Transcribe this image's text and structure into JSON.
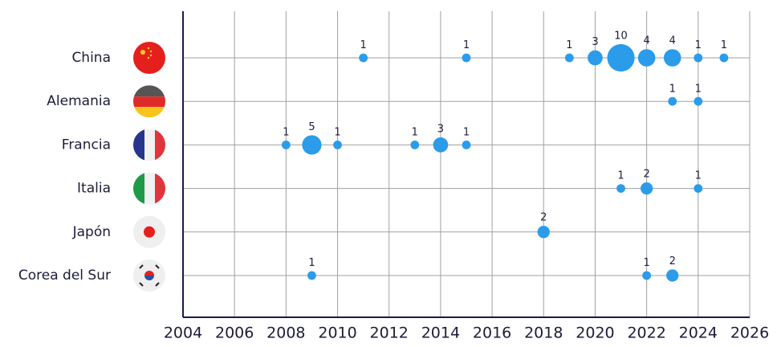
{
  "chart_data": {
    "type": "bubble",
    "categories": [
      "China",
      "Alemania",
      "Francia",
      "Italia",
      "Japón",
      "Corea del Sur"
    ],
    "series": [
      {
        "name": "China",
        "x": [
          2011,
          2015,
          2019,
          2020,
          2021,
          2022,
          2023,
          2024,
          2025
        ],
        "values": [
          1,
          1,
          1,
          3,
          10,
          4,
          4,
          1,
          1
        ]
      },
      {
        "name": "Alemania",
        "x": [
          2023,
          2024
        ],
        "values": [
          1,
          1
        ]
      },
      {
        "name": "Francia",
        "x": [
          2008,
          2009,
          2010,
          2013,
          2014,
          2015
        ],
        "values": [
          1,
          5,
          1,
          1,
          3,
          1
        ]
      },
      {
        "name": "Italia",
        "x": [
          2021,
          2022,
          2024
        ],
        "values": [
          1,
          2,
          1
        ]
      },
      {
        "name": "Japón",
        "x": [
          2018
        ],
        "values": [
          2
        ]
      },
      {
        "name": "Corea del Sur",
        "x": [
          2009,
          2022,
          2023
        ],
        "values": [
          1,
          1,
          2
        ]
      }
    ],
    "color": "#2a9cea",
    "xlim": [
      2004,
      2026
    ],
    "xticks": [
      2004,
      2006,
      2008,
      2010,
      2012,
      2014,
      2016,
      2018,
      2020,
      2022,
      2024,
      2026
    ],
    "grid": true
  }
}
